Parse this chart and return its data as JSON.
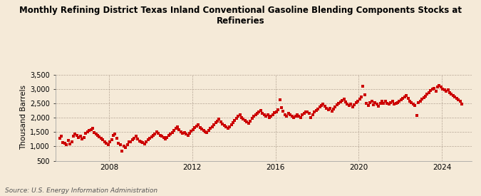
{
  "title": "Monthly Refining District Texas Inland Conventional Gasoline Blending Components Stocks at\nRefineries",
  "ylabel": "Thousand Barrels",
  "source_text": "Source: U.S. Energy Information Administration",
  "background_color": "#f5ead8",
  "dot_color": "#cc0000",
  "dot_size": 5,
  "ylim": [
    500,
    3500
  ],
  "yticks": [
    500,
    1000,
    1500,
    2000,
    2500,
    3000,
    3500
  ],
  "ytick_labels": [
    "500",
    "1,000",
    "1,500",
    "2,000",
    "2,500",
    "3,000",
    "3,500"
  ],
  "xlim_start": [
    2005,
    6,
    1
  ],
  "xlim_end": [
    2025,
    6,
    1
  ],
  "xtick_years": [
    2008,
    2012,
    2016,
    2020,
    2024
  ],
  "data": [
    [
      2005,
      8,
      1280
    ],
    [
      2005,
      9,
      1350
    ],
    [
      2005,
      10,
      1130
    ],
    [
      2005,
      11,
      1100
    ],
    [
      2005,
      12,
      1050
    ],
    [
      2006,
      1,
      1200
    ],
    [
      2006,
      2,
      1080
    ],
    [
      2006,
      3,
      1150
    ],
    [
      2006,
      4,
      1350
    ],
    [
      2006,
      5,
      1420
    ],
    [
      2006,
      6,
      1380
    ],
    [
      2006,
      7,
      1310
    ],
    [
      2006,
      8,
      1350
    ],
    [
      2006,
      9,
      1250
    ],
    [
      2006,
      10,
      1310
    ],
    [
      2006,
      11,
      1450
    ],
    [
      2006,
      12,
      1500
    ],
    [
      2007,
      1,
      1550
    ],
    [
      2007,
      2,
      1580
    ],
    [
      2007,
      3,
      1620
    ],
    [
      2007,
      4,
      1490
    ],
    [
      2007,
      5,
      1420
    ],
    [
      2007,
      6,
      1380
    ],
    [
      2007,
      7,
      1320
    ],
    [
      2007,
      8,
      1280
    ],
    [
      2007,
      9,
      1220
    ],
    [
      2007,
      10,
      1150
    ],
    [
      2007,
      11,
      1100
    ],
    [
      2007,
      12,
      1050
    ],
    [
      2008,
      1,
      1150
    ],
    [
      2008,
      2,
      1220
    ],
    [
      2008,
      3,
      1380
    ],
    [
      2008,
      4,
      1420
    ],
    [
      2008,
      5,
      1280
    ],
    [
      2008,
      6,
      1100
    ],
    [
      2008,
      7,
      1050
    ],
    [
      2008,
      8,
      830
    ],
    [
      2008,
      9,
      1000
    ],
    [
      2008,
      10,
      950
    ],
    [
      2008,
      11,
      1050
    ],
    [
      2008,
      12,
      1150
    ],
    [
      2009,
      1,
      1150
    ],
    [
      2009,
      2,
      1220
    ],
    [
      2009,
      3,
      1280
    ],
    [
      2009,
      4,
      1350
    ],
    [
      2009,
      5,
      1250
    ],
    [
      2009,
      6,
      1180
    ],
    [
      2009,
      7,
      1150
    ],
    [
      2009,
      8,
      1120
    ],
    [
      2009,
      9,
      1080
    ],
    [
      2009,
      10,
      1150
    ],
    [
      2009,
      11,
      1220
    ],
    [
      2009,
      12,
      1280
    ],
    [
      2010,
      1,
      1320
    ],
    [
      2010,
      2,
      1380
    ],
    [
      2010,
      3,
      1420
    ],
    [
      2010,
      4,
      1500
    ],
    [
      2010,
      5,
      1450
    ],
    [
      2010,
      6,
      1380
    ],
    [
      2010,
      7,
      1350
    ],
    [
      2010,
      8,
      1300
    ],
    [
      2010,
      9,
      1250
    ],
    [
      2010,
      10,
      1300
    ],
    [
      2010,
      11,
      1380
    ],
    [
      2010,
      12,
      1420
    ],
    [
      2011,
      1,
      1480
    ],
    [
      2011,
      2,
      1550
    ],
    [
      2011,
      3,
      1620
    ],
    [
      2011,
      4,
      1680
    ],
    [
      2011,
      5,
      1580
    ],
    [
      2011,
      6,
      1500
    ],
    [
      2011,
      7,
      1450
    ],
    [
      2011,
      8,
      1480
    ],
    [
      2011,
      9,
      1420
    ],
    [
      2011,
      10,
      1380
    ],
    [
      2011,
      11,
      1450
    ],
    [
      2011,
      12,
      1520
    ],
    [
      2012,
      1,
      1580
    ],
    [
      2012,
      2,
      1650
    ],
    [
      2012,
      3,
      1700
    ],
    [
      2012,
      4,
      1750
    ],
    [
      2012,
      5,
      1650
    ],
    [
      2012,
      6,
      1600
    ],
    [
      2012,
      7,
      1550
    ],
    [
      2012,
      8,
      1500
    ],
    [
      2012,
      9,
      1480
    ],
    [
      2012,
      10,
      1550
    ],
    [
      2012,
      11,
      1620
    ],
    [
      2012,
      12,
      1680
    ],
    [
      2013,
      1,
      1750
    ],
    [
      2013,
      2,
      1820
    ],
    [
      2013,
      3,
      1880
    ],
    [
      2013,
      4,
      1950
    ],
    [
      2013,
      5,
      1850
    ],
    [
      2013,
      6,
      1780
    ],
    [
      2013,
      7,
      1720
    ],
    [
      2013,
      8,
      1680
    ],
    [
      2013,
      9,
      1620
    ],
    [
      2013,
      10,
      1680
    ],
    [
      2013,
      11,
      1750
    ],
    [
      2013,
      12,
      1820
    ],
    [
      2014,
      1,
      1900
    ],
    [
      2014,
      2,
      1980
    ],
    [
      2014,
      3,
      2050
    ],
    [
      2014,
      4,
      2100
    ],
    [
      2014,
      5,
      2000
    ],
    [
      2014,
      6,
      1950
    ],
    [
      2014,
      7,
      1900
    ],
    [
      2014,
      8,
      1850
    ],
    [
      2014,
      9,
      1800
    ],
    [
      2014,
      10,
      1880
    ],
    [
      2014,
      11,
      1980
    ],
    [
      2014,
      12,
      2050
    ],
    [
      2015,
      1,
      2100
    ],
    [
      2015,
      2,
      2150
    ],
    [
      2015,
      3,
      2200
    ],
    [
      2015,
      4,
      2250
    ],
    [
      2015,
      5,
      2150
    ],
    [
      2015,
      6,
      2100
    ],
    [
      2015,
      7,
      2050
    ],
    [
      2015,
      8,
      2100
    ],
    [
      2015,
      9,
      2000
    ],
    [
      2015,
      10,
      2050
    ],
    [
      2015,
      11,
      2100
    ],
    [
      2015,
      12,
      2180
    ],
    [
      2016,
      1,
      2200
    ],
    [
      2016,
      2,
      2280
    ],
    [
      2016,
      3,
      2620
    ],
    [
      2016,
      4,
      2350
    ],
    [
      2016,
      5,
      2220
    ],
    [
      2016,
      6,
      2100
    ],
    [
      2016,
      7,
      2050
    ],
    [
      2016,
      8,
      2150
    ],
    [
      2016,
      9,
      2100
    ],
    [
      2016,
      10,
      2050
    ],
    [
      2016,
      11,
      2000
    ],
    [
      2016,
      12,
      2050
    ],
    [
      2017,
      1,
      2100
    ],
    [
      2017,
      2,
      2050
    ],
    [
      2017,
      3,
      2000
    ],
    [
      2017,
      4,
      2100
    ],
    [
      2017,
      5,
      2150
    ],
    [
      2017,
      6,
      2200
    ],
    [
      2017,
      7,
      2200
    ],
    [
      2017,
      8,
      2150
    ],
    [
      2017,
      9,
      2000
    ],
    [
      2017,
      10,
      2100
    ],
    [
      2017,
      11,
      2200
    ],
    [
      2017,
      12,
      2250
    ],
    [
      2018,
      1,
      2300
    ],
    [
      2018,
      2,
      2380
    ],
    [
      2018,
      3,
      2420
    ],
    [
      2018,
      4,
      2480
    ],
    [
      2018,
      5,
      2400
    ],
    [
      2018,
      6,
      2320
    ],
    [
      2018,
      7,
      2280
    ],
    [
      2018,
      8,
      2320
    ],
    [
      2018,
      9,
      2220
    ],
    [
      2018,
      10,
      2300
    ],
    [
      2018,
      11,
      2380
    ],
    [
      2018,
      12,
      2450
    ],
    [
      2019,
      1,
      2500
    ],
    [
      2019,
      2,
      2550
    ],
    [
      2019,
      3,
      2600
    ],
    [
      2019,
      4,
      2650
    ],
    [
      2019,
      5,
      2550
    ],
    [
      2019,
      6,
      2480
    ],
    [
      2019,
      7,
      2420
    ],
    [
      2019,
      8,
      2480
    ],
    [
      2019,
      9,
      2380
    ],
    [
      2019,
      10,
      2450
    ],
    [
      2019,
      11,
      2520
    ],
    [
      2019,
      12,
      2580
    ],
    [
      2020,
      1,
      2650
    ],
    [
      2020,
      2,
      2720
    ],
    [
      2020,
      3,
      3080
    ],
    [
      2020,
      4,
      2800
    ],
    [
      2020,
      5,
      2500
    ],
    [
      2020,
      6,
      2420
    ],
    [
      2020,
      7,
      2520
    ],
    [
      2020,
      8,
      2580
    ],
    [
      2020,
      9,
      2450
    ],
    [
      2020,
      10,
      2520
    ],
    [
      2020,
      11,
      2460
    ],
    [
      2020,
      12,
      2400
    ],
    [
      2021,
      1,
      2500
    ],
    [
      2021,
      2,
      2560
    ],
    [
      2021,
      3,
      2500
    ],
    [
      2021,
      4,
      2560
    ],
    [
      2021,
      5,
      2500
    ],
    [
      2021,
      6,
      2460
    ],
    [
      2021,
      7,
      2510
    ],
    [
      2021,
      8,
      2560
    ],
    [
      2021,
      9,
      2460
    ],
    [
      2021,
      10,
      2500
    ],
    [
      2021,
      11,
      2520
    ],
    [
      2021,
      12,
      2560
    ],
    [
      2022,
      1,
      2620
    ],
    [
      2022,
      2,
      2680
    ],
    [
      2022,
      3,
      2720
    ],
    [
      2022,
      4,
      2780
    ],
    [
      2022,
      5,
      2680
    ],
    [
      2022,
      6,
      2580
    ],
    [
      2022,
      7,
      2520
    ],
    [
      2022,
      8,
      2480
    ],
    [
      2022,
      9,
      2420
    ],
    [
      2022,
      10,
      2080
    ],
    [
      2022,
      11,
      2520
    ],
    [
      2022,
      12,
      2580
    ],
    [
      2023,
      1,
      2650
    ],
    [
      2023,
      2,
      2700
    ],
    [
      2023,
      3,
      2750
    ],
    [
      2023,
      4,
      2820
    ],
    [
      2023,
      5,
      2880
    ],
    [
      2023,
      6,
      2940
    ],
    [
      2023,
      7,
      2980
    ],
    [
      2023,
      8,
      3020
    ],
    [
      2023,
      9,
      2920
    ],
    [
      2023,
      10,
      3060
    ],
    [
      2023,
      11,
      3120
    ],
    [
      2023,
      12,
      3060
    ],
    [
      2024,
      1,
      3000
    ],
    [
      2024,
      2,
      2960
    ],
    [
      2024,
      3,
      2920
    ],
    [
      2024,
      4,
      2960
    ],
    [
      2024,
      5,
      2880
    ],
    [
      2024,
      6,
      2820
    ],
    [
      2024,
      7,
      2780
    ],
    [
      2024,
      8,
      2720
    ],
    [
      2024,
      9,
      2680
    ],
    [
      2024,
      10,
      2620
    ],
    [
      2024,
      11,
      2560
    ],
    [
      2024,
      12,
      2480
    ]
  ]
}
